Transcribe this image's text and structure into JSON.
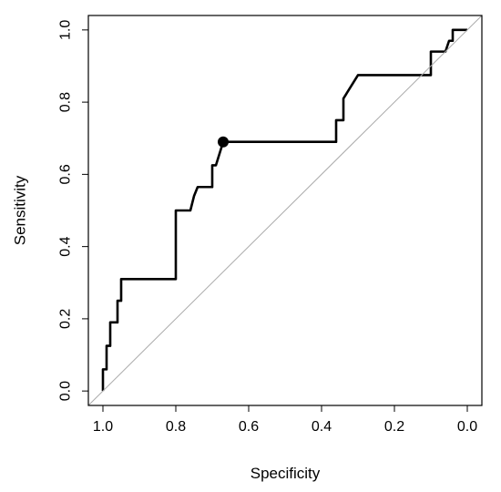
{
  "chart_data": {
    "type": "line",
    "title": "",
    "xlabel": "Specificity",
    "ylabel": "Sensitivity",
    "x_reversed": true,
    "xlim": [
      1.04,
      -0.04
    ],
    "ylim": [
      -0.04,
      1.04
    ],
    "xticks": [
      1.0,
      0.8,
      0.6,
      0.4,
      0.2,
      0.0
    ],
    "xtick_labels": [
      "1.0",
      "0.8",
      "0.6",
      "0.4",
      "0.2",
      "0.0"
    ],
    "yticks": [
      0.0,
      0.2,
      0.4,
      0.6,
      0.8,
      1.0
    ],
    "ytick_labels": [
      "0.0",
      "0.2",
      "0.4",
      "0.6",
      "0.8",
      "1.0"
    ],
    "grid": false,
    "legend": "none",
    "series": [
      {
        "style": "step-line",
        "color": "#000000",
        "x": [
          1.0,
          1.0,
          0.99,
          0.99,
          0.98,
          0.98,
          0.96,
          0.96,
          0.95,
          0.95,
          0.91,
          0.91,
          0.8,
          0.8,
          0.76,
          0.75,
          0.74,
          0.7,
          0.7,
          0.69,
          0.67,
          0.36,
          0.36,
          0.34,
          0.34,
          0.3,
          0.1,
          0.1,
          0.06,
          0.05,
          0.04,
          0.04,
          0.0
        ],
        "y": [
          0.0,
          0.06,
          0.06,
          0.125,
          0.125,
          0.19,
          0.19,
          0.25,
          0.25,
          0.31,
          0.31,
          0.31,
          0.31,
          0.5,
          0.5,
          0.54,
          0.565,
          0.565,
          0.625,
          0.625,
          0.69,
          0.69,
          0.75,
          0.75,
          0.81,
          0.875,
          0.875,
          0.94,
          0.94,
          0.97,
          0.97,
          1.0,
          1.0
        ]
      },
      {
        "style": "diagonal",
        "color": "#aaaaaa",
        "x": [
          1.04,
          -0.04
        ],
        "y": [
          -0.04,
          1.04
        ]
      }
    ],
    "highlight_point": {
      "x": 0.67,
      "y": 0.69,
      "color": "#000000"
    }
  }
}
